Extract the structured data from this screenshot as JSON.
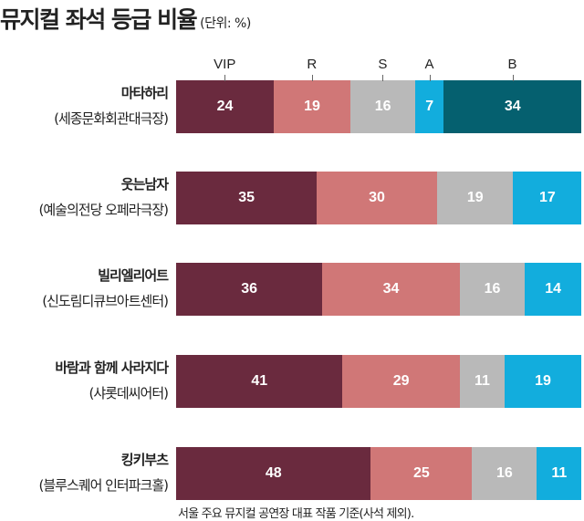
{
  "chart_data": {
    "type": "bar",
    "orientation": "horizontal",
    "stacked": true,
    "title": "뮤지컬 좌석 등급 비율",
    "unit": "(단위: %)",
    "note": "서울 주요 뮤지컬 공연장 대표 작품 기준(사석 제외).",
    "legend_placement": "top",
    "series_names": [
      "VIP",
      "R",
      "S",
      "A",
      "B"
    ],
    "colors": {
      "VIP": "#6a2a3e",
      "R": "#d07777",
      "S": "#b9b9b9",
      "A": "#12addd",
      "B": "#05606f"
    },
    "categories": [
      {
        "name": "마타하리",
        "venue": "(세종문화회관대극장)",
        "values": {
          "VIP": 24,
          "R": 19,
          "S": 16,
          "A": 7,
          "B": 34
        }
      },
      {
        "name": "웃는남자",
        "venue": "(예술의전당 오페라극장)",
        "values": {
          "VIP": 35,
          "R": 30,
          "S": 19,
          "A": 17
        }
      },
      {
        "name": "빌리엘리어트",
        "venue": "(신도림디큐브아트센터)",
        "values": {
          "VIP": 36,
          "R": 34,
          "S": 16,
          "A": 14
        }
      },
      {
        "name": "바람과 함께 사라지다",
        "venue": "(샤롯데씨어터)",
        "values": {
          "VIP": 41,
          "R": 29,
          "S": 11,
          "A": 19
        }
      },
      {
        "name": "킹키부츠",
        "venue": "(블루스퀘어 인터파크홀)",
        "values": {
          "VIP": 48,
          "R": 25,
          "S": 16,
          "A": 11
        }
      }
    ],
    "grid": false
  }
}
